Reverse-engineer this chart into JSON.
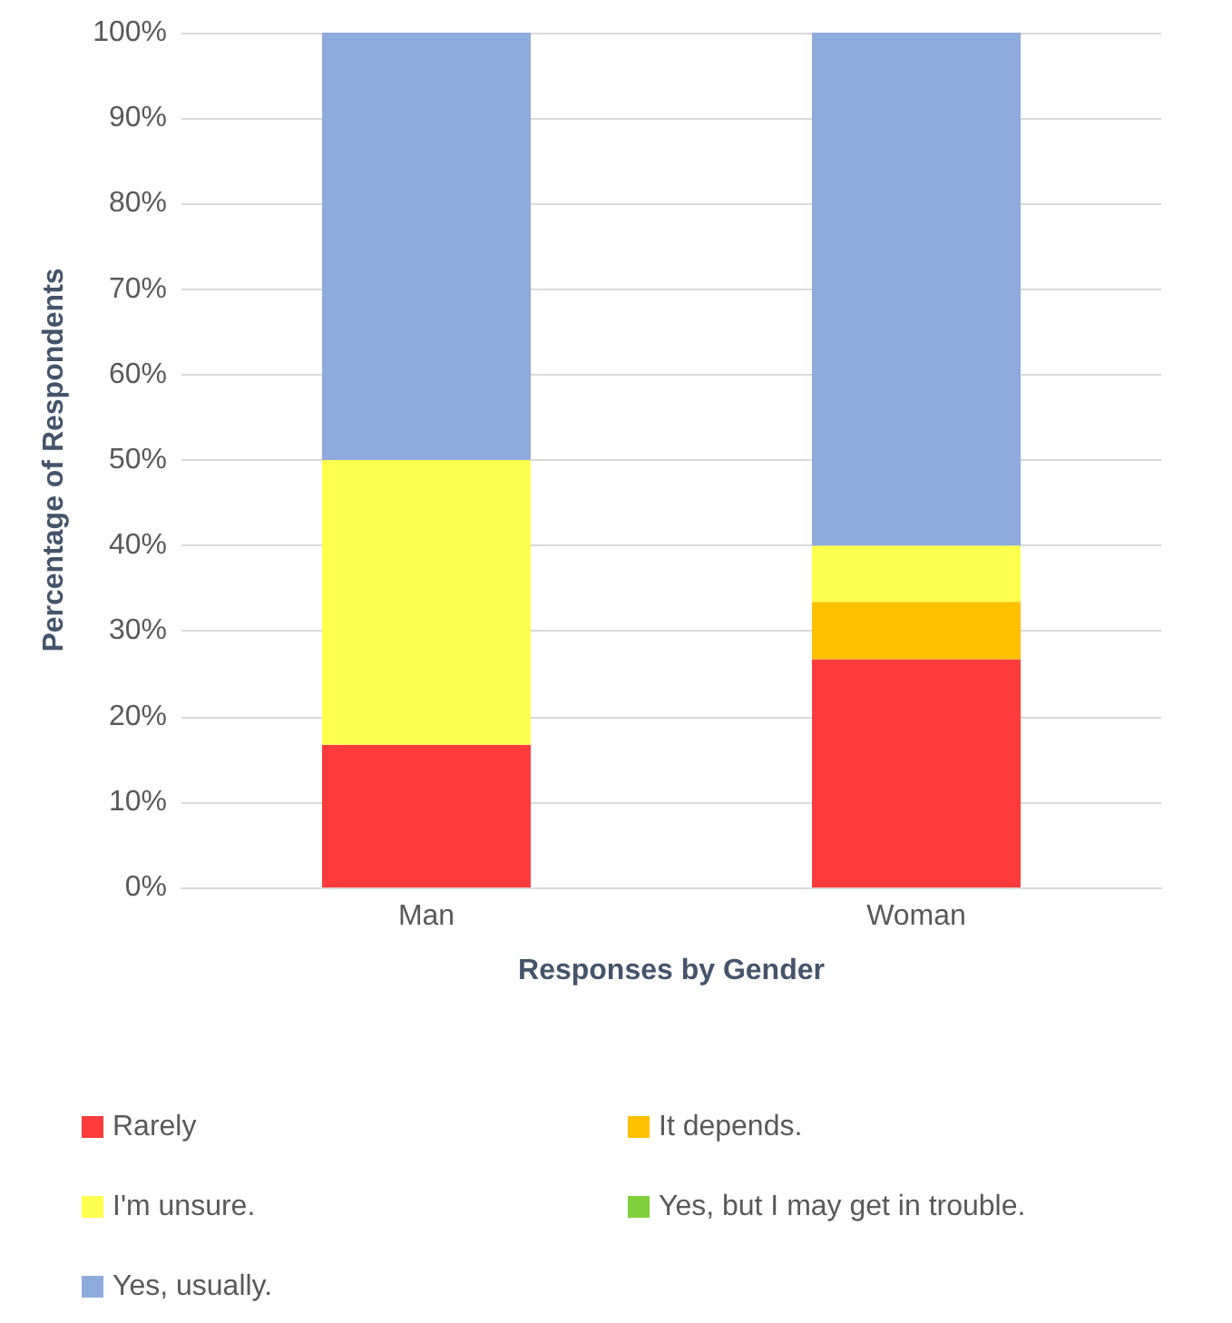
{
  "chart_data": {
    "type": "bar",
    "stacked": true,
    "xlabel": "Responses by Gender",
    "ylabel": "Percentage of Respondents",
    "categories": [
      "Man",
      "Woman"
    ],
    "series": [
      {
        "name": "Rarely",
        "color": "#ff3b3b",
        "values": [
          16.7,
          26.7
        ]
      },
      {
        "name": "It depends.",
        "color": "#ffc000",
        "values": [
          0,
          6.7
        ]
      },
      {
        "name": "I'm unsure.",
        "color": "#ffff4d",
        "values": [
          33.3,
          6.6
        ]
      },
      {
        "name": "Yes, but I may get in trouble.",
        "color": "#7fd13b",
        "values": [
          0,
          0
        ]
      },
      {
        "name": "Yes, usually.",
        "color": "#8faadc",
        "values": [
          50,
          60
        ]
      }
    ],
    "ylim": [
      0,
      100
    ],
    "yticks": [
      {
        "value": 0,
        "label": "0%"
      },
      {
        "value": 10,
        "label": "10%"
      },
      {
        "value": 20,
        "label": "20%"
      },
      {
        "value": 30,
        "label": "30%"
      },
      {
        "value": 40,
        "label": "40%"
      },
      {
        "value": 50,
        "label": "50%"
      },
      {
        "value": 60,
        "label": "60%"
      },
      {
        "value": 70,
        "label": "70%"
      },
      {
        "value": 80,
        "label": "80%"
      },
      {
        "value": 90,
        "label": "90%"
      },
      {
        "value": 100,
        "label": "100%"
      }
    ],
    "grid": "y",
    "legend": "bottom"
  }
}
